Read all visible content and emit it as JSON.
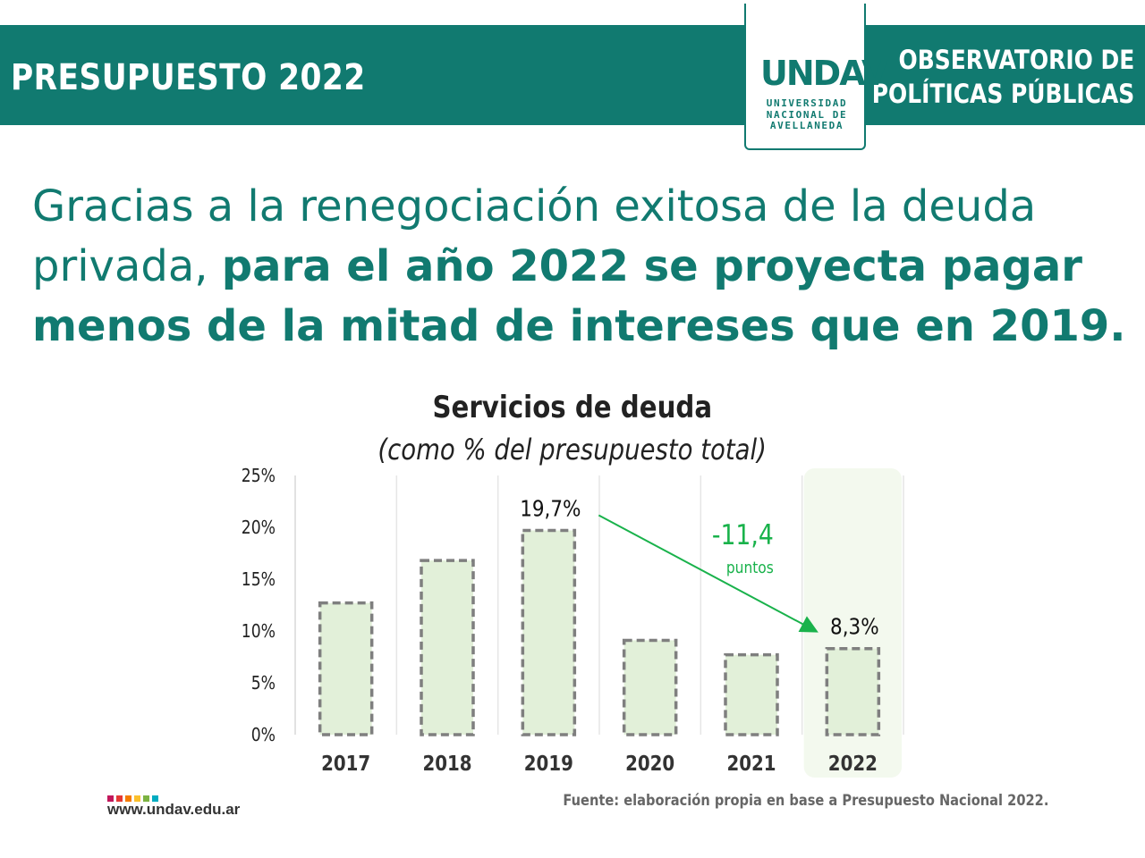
{
  "header": {
    "title": "PRESUPUESTO 2022",
    "org_line1": "OBSERVATORIO DE",
    "org_line2": "POLÍTICAS PÚBLICAS",
    "logo_mark": "UNDAV",
    "logo_line1": "UNIVERSIDAD",
    "logo_line2": "NACIONAL DE",
    "logo_line3": "AVELLANEDA"
  },
  "headline": {
    "light": "Gracias a la renegociación exitosa de la deuda privada, ",
    "strong": "para el año 2022 se proyecta pagar menos de la mitad de intereses que en 2019."
  },
  "chart_data": {
    "type": "bar",
    "title": "Servicios de deuda",
    "subtitle": "(como % del presupuesto total)",
    "categories": [
      "2017",
      "2018",
      "2019",
      "2020",
      "2021",
      "2022"
    ],
    "values": [
      12.7,
      16.8,
      19.7,
      9.1,
      7.7,
      8.3
    ],
    "ylim": [
      0,
      25
    ],
    "yticks": [
      {
        "value": 0,
        "label": "0%"
      },
      {
        "value": 5,
        "label": "5%"
      },
      {
        "value": 10,
        "label": "10%"
      },
      {
        "value": 15,
        "label": "15%"
      },
      {
        "value": 20,
        "label": "20%"
      },
      {
        "value": 25,
        "label": "25%"
      }
    ],
    "data_labels": [
      {
        "category": "2019",
        "text": "19,7%"
      },
      {
        "category": "2022",
        "text": "8,3%"
      }
    ],
    "highlight_category": "2022",
    "annotation": {
      "from": "2019",
      "to": "2022",
      "value": "-11,4",
      "unit": "puntos"
    },
    "bar_fill": "#e2f0d9",
    "bar_stroke": "#7f7f7f",
    "highlight_fill": "#f3f9ee",
    "arrow_color": "#19b24b",
    "grid": true
  },
  "footer": {
    "url": "www.undav.edu.ar",
    "source": "Fuente: elaboración propia en base a Presupuesto Nacional 2022.",
    "dot_colors": [
      "#c2185b",
      "#e53935",
      "#f57c00",
      "#fbc02d",
      "#7cb342",
      "#00acc1"
    ]
  }
}
